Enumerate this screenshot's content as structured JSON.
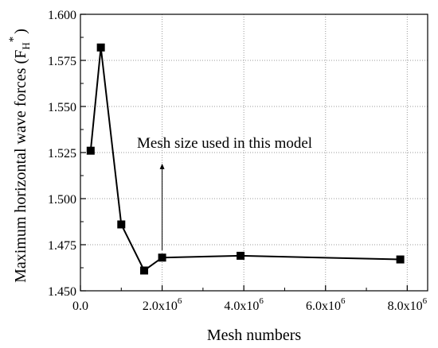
{
  "chart_data": {
    "type": "line",
    "xlabel": "Mesh numbers",
    "ylabel_main": "Maximum horizontal wave forces (F",
    "ylabel_sub": "H",
    "ylabel_sup": "*",
    "ylabel_close": ")",
    "xlim": [
      0,
      8500000
    ],
    "ylim": [
      1.45,
      1.6
    ],
    "x_ticks": [
      0,
      2000000,
      4000000,
      6000000,
      8000000
    ],
    "x_tick_labels": [
      {
        "base": "0.0",
        "exp": ""
      },
      {
        "base": "2.0x10",
        "exp": "6"
      },
      {
        "base": "4.0x10",
        "exp": "6"
      },
      {
        "base": "6.0x10",
        "exp": "6"
      },
      {
        "base": "8.0x10",
        "exp": "6"
      }
    ],
    "y_ticks": [
      1.45,
      1.475,
      1.5,
      1.525,
      1.55,
      1.575,
      1.6
    ],
    "y_tick_labels": [
      "1.450",
      "1.475",
      "1.500",
      "1.525",
      "1.550",
      "1.575",
      "1.600"
    ],
    "grid": "dotted",
    "series": [
      {
        "marker": "square",
        "color": "#000000",
        "x": [
          250000,
          500000,
          1000000,
          1560000,
          2000000,
          3920000,
          7830000
        ],
        "y": [
          1.526,
          1.582,
          1.486,
          1.461,
          1.468,
          1.469,
          1.467
        ]
      }
    ],
    "annotation": {
      "text": "Mesh size used in this model",
      "x": 2000000,
      "y_from": 1.472,
      "y_to": 1.519
    }
  }
}
